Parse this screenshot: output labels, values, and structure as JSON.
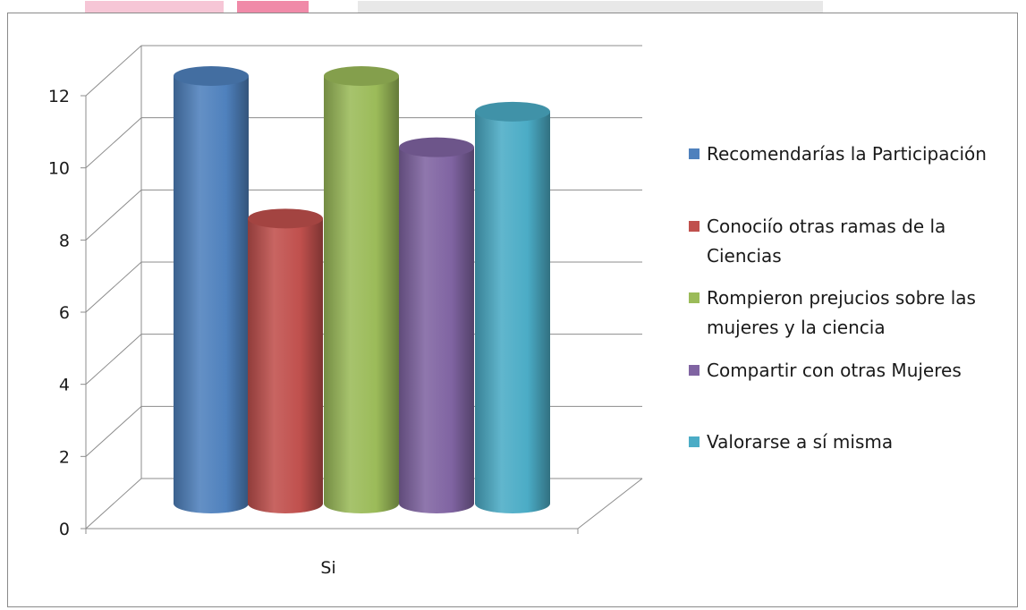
{
  "chart_data": {
    "type": "bar",
    "style": "3d-cylinder",
    "categories": [
      "Si"
    ],
    "series": [
      {
        "name": "Recomendarías la Participación",
        "values": [
          12
        ],
        "color": "#4F81BD"
      },
      {
        "name": "Conociío otras ramas de la Ciencias",
        "values": [
          8
        ],
        "color": "#C0504D"
      },
      {
        "name": "Rompieron prejucios sobre las mujeres y la ciencia",
        "values": [
          12
        ],
        "color": "#9BBB59"
      },
      {
        "name": "Compartir con otras Mujeres",
        "values": [
          10
        ],
        "color": "#8064A2"
      },
      {
        "name": "Valorarse a sí misma",
        "values": [
          11
        ],
        "color": "#4BACC6"
      }
    ],
    "legend": {
      "position": "right",
      "entries": [
        {
          "lines": [
            "Recomendarías la Participación"
          ]
        },
        {
          "lines": [
            "Conociío otras ramas de la",
            "Ciencias"
          ]
        },
        {
          "lines": [
            "Rompieron prejucios sobre las",
            "mujeres y la ciencia"
          ]
        },
        {
          "lines": [
            "Compartir con otras Mujeres"
          ]
        },
        {
          "lines": [
            "Valorarse a sí misma"
          ]
        }
      ]
    },
    "ylim": [
      0,
      12
    ],
    "yticks": [
      "0",
      "2",
      "4",
      "6",
      "8",
      "10",
      "12"
    ],
    "grid": true,
    "title": "",
    "xlabel": "",
    "ylabel": ""
  }
}
